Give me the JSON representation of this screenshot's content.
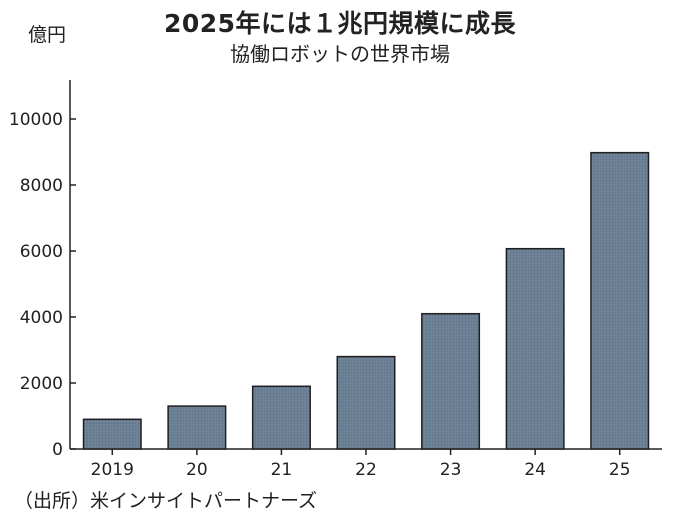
{
  "title": "2025年には１兆円規模に成長",
  "subtitle": "協働ロボットの世界市場",
  "unit_label": "億円",
  "source": "（出所）米インサイトパートナーズ",
  "colors": {
    "bar_fill": "#6e8297",
    "bar_stroke": "#1f1f1f",
    "axis": "#222222"
  },
  "chart_data": {
    "type": "bar",
    "categories": [
      "2019",
      "20",
      "21",
      "22",
      "23",
      "24",
      "25"
    ],
    "values": [
      900,
      1300,
      1900,
      2800,
      4100,
      6070,
      8980
    ],
    "ylim": [
      0,
      11000
    ],
    "yticks": [
      0,
      2000,
      4000,
      6000,
      8000,
      10000
    ],
    "ytick_labels": [
      "0",
      "2000",
      "4000",
      "6000",
      "8000",
      "10000"
    ],
    "grid": false,
    "legend": "none"
  }
}
